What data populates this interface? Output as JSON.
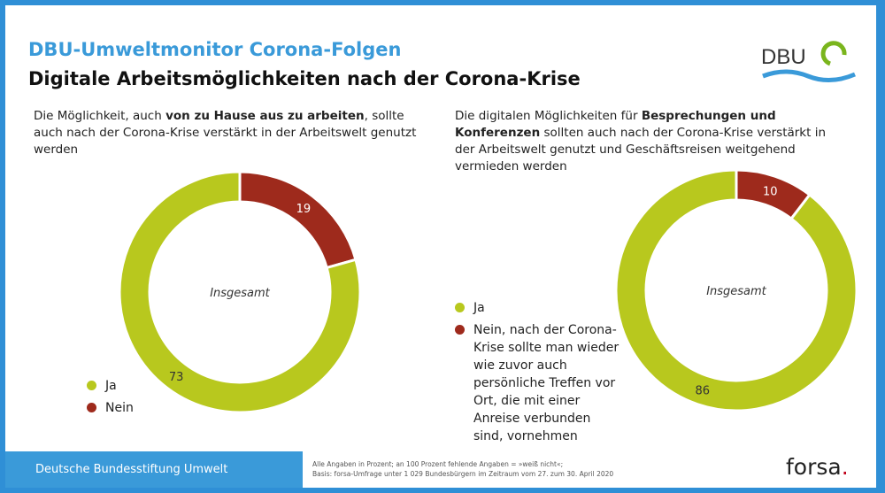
{
  "header": {
    "subtitle": "DBU-Umweltmonitor Corona-Folgen",
    "title": "Digitale Arbeitsmöglichkeiten nach der Corona-Krise",
    "logo_text": "DBU"
  },
  "colors": {
    "ja": "#b8c81e",
    "nein": "#9e2a1c",
    "accent": "#3a9ad9"
  },
  "left": {
    "q1": "Die Möglichkeit, auch ",
    "q_bold": "von zu Hause aus zu arbeiten",
    "q2": ", sollte auch nach der Corona-Krise verstärkt in der Arbeitswelt genutzt werden",
    "legend": [
      "Ja",
      "Nein"
    ]
  },
  "right": {
    "q1": "Die digitalen Möglichkeiten für ",
    "q_bold": "Besprechungen und Konferenzen",
    "q2": " sollten auch nach der Corona-Krise verstärkt in der Arbeitswelt genutzt und Geschäftsreisen weitgehend vermieden werden",
    "legend": [
      "Ja",
      "Nein, nach der Corona-Krise sollte man wieder wie zuvor auch persönliche Treffen vor Ort, die mit einer Anreise verbunden sind, vornehmen"
    ]
  },
  "chart_data": [
    {
      "type": "pie",
      "center_label": "Insgesamt",
      "categories": [
        "Ja",
        "Nein"
      ],
      "values": [
        73,
        19
      ]
    },
    {
      "type": "pie",
      "center_label": "Insgesamt",
      "categories": [
        "Ja",
        "Nein"
      ],
      "values": [
        86,
        10
      ]
    }
  ],
  "footer": {
    "org": "Deutsche Bundesstiftung Umwelt",
    "note1": "Alle Angaben in Prozent; an 100 Prozent fehlende Angaben = »weiß nicht«;",
    "note2": "Basis: forsa-Umfrage unter 1 029 Bundesbürgern im Zeitraum vom 27. zum 30. April 2020",
    "brand": "forsa",
    "brand_dot": "."
  }
}
